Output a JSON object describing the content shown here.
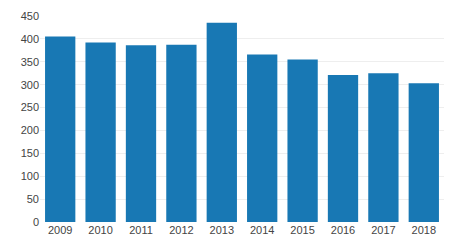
{
  "chart_data": {
    "type": "bar",
    "categories": [
      "2009",
      "2010",
      "2011",
      "2012",
      "2013",
      "2014",
      "2015",
      "2016",
      "2017",
      "2018"
    ],
    "values": [
      405,
      392,
      386,
      387,
      435,
      366,
      355,
      321,
      325,
      303
    ],
    "color": "#1878b4",
    "ylim": [
      0,
      450
    ],
    "yticks": [
      0,
      50,
      100,
      150,
      200,
      250,
      300,
      350,
      400,
      450
    ],
    "grid": true
  }
}
